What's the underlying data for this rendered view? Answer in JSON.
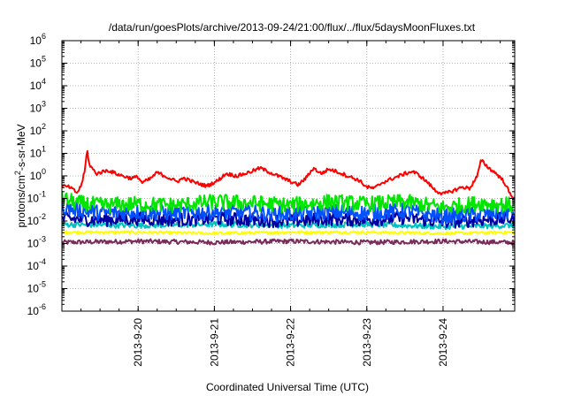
{
  "chart_data": {
    "type": "line",
    "title": "/data/run/goesPlots/archive/2013-09-24/21:00/flux/../flux/5daysMoonFluxes.txt",
    "xlabel": "Coordinated Universal Time (UTC)",
    "ylabel": {
      "base": "protons/cm",
      "sup": "2",
      "rest": "-s-sr-MeV"
    },
    "yscale": "log",
    "ylim": [
      -6,
      6
    ],
    "xlim": [
      0,
      5.94
    ],
    "grid": true,
    "legend": "none",
    "y_ticks": [
      {
        "exp": -6,
        "base": "10",
        "sup": "-6"
      },
      {
        "exp": -5,
        "base": "10",
        "sup": "-5"
      },
      {
        "exp": -4,
        "base": "10",
        "sup": "-4"
      },
      {
        "exp": -3,
        "base": "10",
        "sup": "-3"
      },
      {
        "exp": -2,
        "base": "10",
        "sup": "-2"
      },
      {
        "exp": -1,
        "base": "10",
        "sup": "-1"
      },
      {
        "exp": 0,
        "base": "10",
        "sup": "0"
      },
      {
        "exp": 1,
        "base": "10",
        "sup": "1"
      },
      {
        "exp": 2,
        "base": "10",
        "sup": "2"
      },
      {
        "exp": 3,
        "base": "10",
        "sup": "3"
      },
      {
        "exp": 4,
        "base": "10",
        "sup": "4"
      },
      {
        "exp": 5,
        "base": "10",
        "sup": "5"
      },
      {
        "exp": 6,
        "base": "10",
        "sup": "6"
      }
    ],
    "x_ticks": [
      {
        "day": 1,
        "label": "2013-9-20"
      },
      {
        "day": 2,
        "label": "2013-9-21"
      },
      {
        "day": 3,
        "label": "2013-9-22"
      },
      {
        "day": 4,
        "label": "2013-9-23"
      },
      {
        "day": 5,
        "label": "2013-9-24"
      }
    ],
    "series": [
      {
        "color": "#ff0000",
        "noise": 0.08,
        "points": [
          [
            0,
            -0.45
          ],
          [
            0.1,
            -0.5
          ],
          [
            0.2,
            -0.75
          ],
          [
            0.25,
            -0.45
          ],
          [
            0.3,
            0.2
          ],
          [
            0.33,
            1.15
          ],
          [
            0.36,
            0.5
          ],
          [
            0.45,
            0.1
          ],
          [
            0.6,
            0.25
          ],
          [
            0.75,
            0.05
          ],
          [
            0.9,
            -0.1
          ],
          [
            1.0,
            -0.05
          ],
          [
            1.05,
            -0.3
          ],
          [
            1.15,
            -0.15
          ],
          [
            1.25,
            0.15
          ],
          [
            1.35,
            0.0
          ],
          [
            1.5,
            -0.25
          ],
          [
            1.6,
            -0.1
          ],
          [
            1.75,
            -0.3
          ],
          [
            1.9,
            -0.45
          ],
          [
            2.05,
            -0.2
          ],
          [
            2.15,
            0.1
          ],
          [
            2.3,
            0.0
          ],
          [
            2.45,
            0.15
          ],
          [
            2.6,
            0.35
          ],
          [
            2.7,
            0.2
          ],
          [
            2.8,
            0.05
          ],
          [
            2.9,
            -0.1
          ],
          [
            3.0,
            -0.25
          ],
          [
            3.1,
            -0.4
          ],
          [
            3.2,
            -0.1
          ],
          [
            3.3,
            0.35
          ],
          [
            3.4,
            0.1
          ],
          [
            3.5,
            0.3
          ],
          [
            3.6,
            0.2
          ],
          [
            3.75,
            0.0
          ],
          [
            3.9,
            -0.2
          ],
          [
            4.0,
            -0.5
          ],
          [
            4.1,
            -0.55
          ],
          [
            4.2,
            -0.3
          ],
          [
            4.35,
            -0.1
          ],
          [
            4.5,
            0.1
          ],
          [
            4.6,
            0.2
          ],
          [
            4.7,
            0.0
          ],
          [
            4.8,
            -0.3
          ],
          [
            4.9,
            -0.65
          ],
          [
            5.0,
            -0.8
          ],
          [
            5.1,
            -0.7
          ],
          [
            5.25,
            -0.5
          ],
          [
            5.35,
            -0.55
          ],
          [
            5.45,
            0.0
          ],
          [
            5.5,
            0.7
          ],
          [
            5.6,
            0.35
          ],
          [
            5.7,
            0.1
          ],
          [
            5.8,
            -0.25
          ],
          [
            5.9,
            -0.95
          ]
        ]
      },
      {
        "color": "#00e600",
        "noise": 0.35,
        "base": -1.25,
        "points": [
          [
            0,
            -1.0
          ],
          [
            0.2,
            -1.2
          ],
          [
            0.5,
            -1.3
          ],
          [
            1.0,
            -1.25
          ],
          [
            1.5,
            -1.3
          ],
          [
            2.0,
            -1.15
          ],
          [
            2.5,
            -1.2
          ],
          [
            3.0,
            -1.3
          ],
          [
            3.5,
            -1.15
          ],
          [
            4.0,
            -1.25
          ],
          [
            4.5,
            -1.15
          ],
          [
            5.0,
            -1.4
          ],
          [
            5.5,
            -1.2
          ],
          [
            5.9,
            -1.3
          ]
        ]
      },
      {
        "color": "#0050ff",
        "noise": 0.35,
        "points": [
          [
            0,
            -1.4
          ],
          [
            0.5,
            -1.65
          ],
          [
            1.0,
            -1.6
          ],
          [
            1.5,
            -1.65
          ],
          [
            2.0,
            -1.6
          ],
          [
            2.5,
            -1.65
          ],
          [
            3.0,
            -1.7
          ],
          [
            3.5,
            -1.6
          ],
          [
            4.0,
            -1.65
          ],
          [
            4.5,
            -1.55
          ],
          [
            5.0,
            -1.8
          ],
          [
            5.5,
            -1.7
          ],
          [
            5.9,
            -1.6
          ]
        ]
      },
      {
        "color": "#0000a0",
        "noise": 0.3,
        "points": [
          [
            0,
            -1.9
          ],
          [
            0.5,
            -1.95
          ],
          [
            1.0,
            -1.9
          ],
          [
            1.5,
            -1.95
          ],
          [
            2.0,
            -1.9
          ],
          [
            2.5,
            -1.95
          ],
          [
            3.0,
            -2.0
          ],
          [
            3.5,
            -1.9
          ],
          [
            4.0,
            -1.95
          ],
          [
            4.5,
            -1.85
          ],
          [
            5.0,
            -2.05
          ],
          [
            5.5,
            -1.95
          ],
          [
            5.9,
            -1.9
          ]
        ]
      },
      {
        "color": "#00c0c0",
        "noise": 0.12,
        "points": [
          [
            0,
            -2.15
          ],
          [
            1.0,
            -2.2
          ],
          [
            2.0,
            -2.15
          ],
          [
            3.0,
            -2.2
          ],
          [
            4.0,
            -2.15
          ],
          [
            5.0,
            -2.25
          ],
          [
            5.9,
            -2.2
          ]
        ]
      },
      {
        "color": "#ffff00",
        "noise": 0.06,
        "points": [
          [
            0,
            -2.5
          ],
          [
            1.0,
            -2.5
          ],
          [
            2.0,
            -2.55
          ],
          [
            3.0,
            -2.5
          ],
          [
            4.0,
            -2.5
          ],
          [
            5.0,
            -2.55
          ],
          [
            5.9,
            -2.5
          ]
        ]
      },
      {
        "color": "#7b2a5a",
        "noise": 0.1,
        "points": [
          [
            0,
            -2.95
          ],
          [
            1.0,
            -2.9
          ],
          [
            2.0,
            -2.95
          ],
          [
            3.0,
            -2.9
          ],
          [
            4.0,
            -2.95
          ],
          [
            5.0,
            -2.9
          ],
          [
            5.9,
            -2.95
          ]
        ]
      }
    ]
  }
}
